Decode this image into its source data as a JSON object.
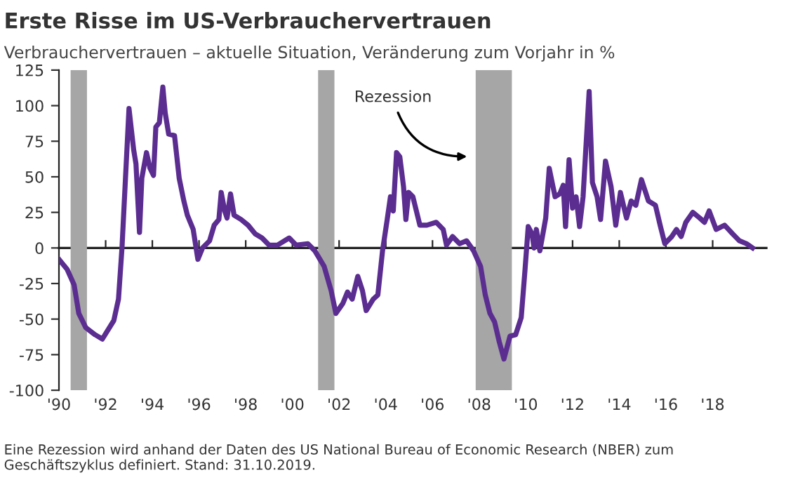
{
  "chart_data": {
    "type": "line",
    "title": "Erste Risse im US-Verbrauchervertrauen",
    "subtitle": "Verbrauchervertrauen – aktuelle Situation, Veränderung zum Vorjahr in %",
    "series": [
      {
        "color": "#5b2d91",
        "x": [
          1990.0,
          1990.35,
          1990.65,
          1990.85,
          1991.15,
          1991.55,
          1991.86,
          1992.35,
          1992.55,
          1992.7,
          1993.0,
          1993.2,
          1993.3,
          1993.45,
          1993.55,
          1993.75,
          1993.9,
          1994.05,
          1994.15,
          1994.3,
          1994.45,
          1994.55,
          1994.7,
          1994.95,
          1995.15,
          1995.35,
          1995.5,
          1995.75,
          1995.95,
          1996.15,
          1996.45,
          1996.65,
          1996.85,
          1996.95,
          1997.1,
          1997.2,
          1997.35,
          1997.5,
          1997.8,
          1998.1,
          1998.4,
          1998.7,
          1999.0,
          1999.36,
          1999.86,
          2000.16,
          2000.66,
          2000.96,
          2001.36,
          2001.66,
          2001.86,
          2002.16,
          2002.36,
          2002.56,
          2002.8,
          2003.0,
          2003.16,
          2003.46,
          2003.66,
          2003.86,
          2004.06,
          2004.2,
          2004.32,
          2004.46,
          2004.6,
          2004.76,
          2004.86,
          2004.98,
          2005.16,
          2005.46,
          2005.76,
          2006.16,
          2006.46,
          2006.6,
          2006.86,
          2007.16,
          2007.46,
          2007.76,
          2008.06,
          2008.26,
          2008.46,
          2008.66,
          2008.86,
          2009.06,
          2009.32,
          2009.56,
          2009.8,
          2009.96,
          2010.1,
          2010.26,
          2010.35,
          2010.45,
          2010.6,
          2010.85,
          2011.0,
          2011.25,
          2011.45,
          2011.6,
          2011.7,
          2011.85,
          2012.0,
          2012.15,
          2012.3,
          2012.45,
          2012.71,
          2012.85,
          2013.05,
          2013.2,
          2013.41,
          2013.65,
          2013.85,
          2014.05,
          2014.31,
          2014.51,
          2014.71,
          2014.95,
          2015.25,
          2015.55,
          2015.75,
          2015.95,
          2016.25,
          2016.45,
          2016.65,
          2016.85,
          2017.15,
          2017.45,
          2017.65,
          2017.85,
          2018.15,
          2018.51,
          2018.85,
          2019.15,
          2019.45,
          2019.71
        ],
        "values": [
          -8,
          -15,
          -26,
          -46,
          -56,
          -61,
          -64,
          -51,
          -36,
          0,
          98,
          69,
          59,
          11,
          49,
          67,
          56,
          51,
          85,
          88,
          113,
          95,
          80,
          79,
          49,
          33,
          23,
          13,
          -8,
          0,
          5,
          16,
          20,
          39,
          26,
          21,
          38,
          23,
          20,
          16,
          10,
          7,
          2,
          2,
          7,
          2,
          3,
          -2,
          -13,
          -30,
          -46,
          -39,
          -31,
          -36,
          -20,
          -30,
          -44,
          -36,
          -33,
          -2,
          20,
          36,
          26,
          67,
          64,
          43,
          20,
          39,
          36,
          16,
          16,
          18,
          13,
          2,
          8,
          3,
          5,
          -2,
          -13,
          -33,
          -46,
          -52,
          -66,
          -78,
          -62,
          -61,
          -49,
          -16,
          15,
          10,
          0,
          13,
          -2,
          21,
          56,
          36,
          38,
          44,
          15,
          62,
          28,
          36,
          15,
          36,
          110,
          46,
          36,
          20,
          61,
          43,
          16,
          39,
          21,
          33,
          30,
          48,
          33,
          30,
          16,
          3,
          8,
          13,
          8,
          18,
          25,
          21,
          18,
          26,
          13,
          16,
          10,
          5,
          3,
          0
        ]
      }
    ],
    "xlim": [
      1990,
      2020.3
    ],
    "xticks": [
      {
        "value": 1990,
        "label": "'90"
      },
      {
        "value": 1992,
        "label": "'92"
      },
      {
        "value": 1994,
        "label": "'94"
      },
      {
        "value": 1996,
        "label": "'96"
      },
      {
        "value": 1998,
        "label": "'98"
      },
      {
        "value": 2000,
        "label": "'00"
      },
      {
        "value": 2002,
        "label": "'02"
      },
      {
        "value": 2004,
        "label": "'04"
      },
      {
        "value": 2006,
        "label": "'06"
      },
      {
        "value": 2008,
        "label": "'08"
      },
      {
        "value": 2010,
        "label": "'10"
      },
      {
        "value": 2012,
        "label": "'12"
      },
      {
        "value": 2014,
        "label": "'14"
      },
      {
        "value": 2016,
        "label": "'16"
      },
      {
        "value": 2018,
        "label": "'18"
      }
    ],
    "ylim": [
      -100,
      125
    ],
    "yticks": [
      -100,
      -75,
      -50,
      -25,
      0,
      25,
      50,
      75,
      100,
      125
    ],
    "bands": [
      {
        "axis": "x",
        "from": 1990.5,
        "to": 1991.2,
        "color": "#a6a6a6"
      },
      {
        "axis": "x",
        "from": 2001.1,
        "to": 2001.8,
        "color": "#a6a6a6"
      },
      {
        "axis": "x",
        "from": 2007.85,
        "to": 2009.4,
        "color": "#a6a6a6",
        "label": "Rezession"
      }
    ],
    "annotations": [
      "Eine Rezession wird anhand der Daten des US National Bureau of Economic Research (NBER) zum Geschäftszyklus definiert. Stand: 31.10.2019."
    ],
    "legend": false,
    "marker": "none",
    "line_style": "solid"
  }
}
